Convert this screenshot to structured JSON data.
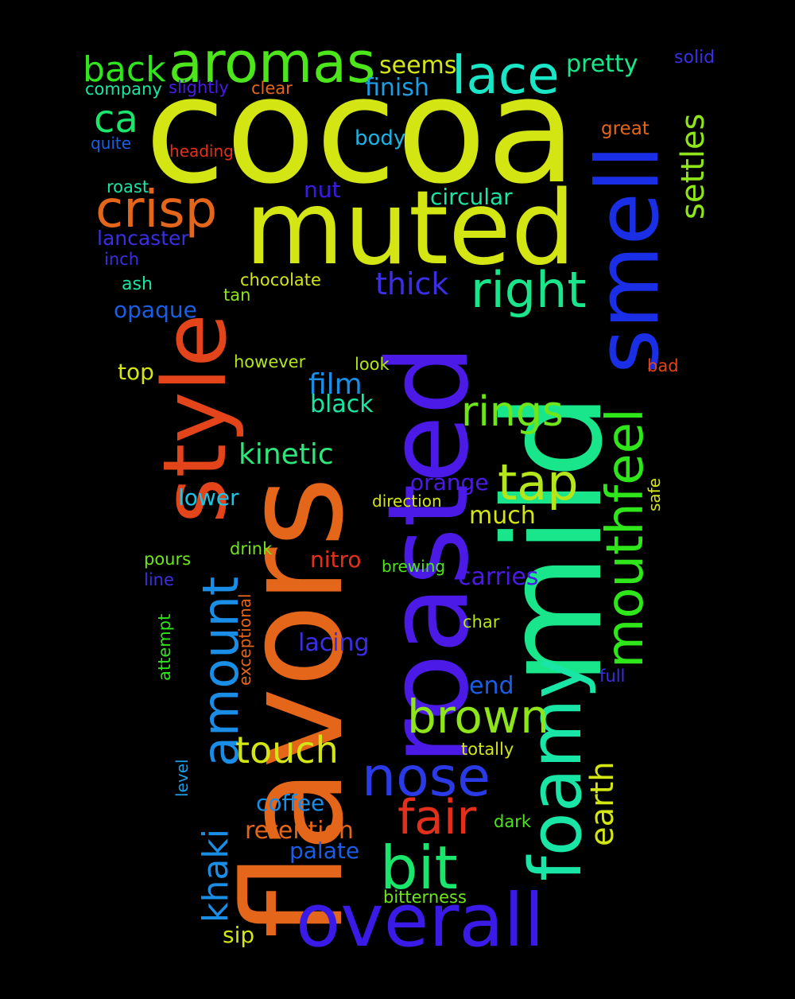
{
  "words": [
    {
      "text": "cocoa",
      "color": "#d4e514"
    },
    {
      "text": "flavors",
      "color": "#e4661a"
    },
    {
      "text": "mild",
      "color": "#19e68a"
    },
    {
      "text": "roasted",
      "color": "#4b1ae6"
    },
    {
      "text": "muted",
      "color": "#d4e514"
    },
    {
      "text": "style",
      "color": "#e4441a"
    },
    {
      "text": "smell",
      "color": "#1a2ee6"
    },
    {
      "text": "overall",
      "color": "#3a1ae6"
    },
    {
      "text": "foamy",
      "color": "#19e6a6"
    },
    {
      "text": "mouthfeel",
      "color": "#2ee61a"
    },
    {
      "text": "aromas",
      "color": "#4ce61a"
    },
    {
      "text": "amount",
      "color": "#1a8ee6"
    },
    {
      "text": "nose",
      "color": "#2a3ae6"
    },
    {
      "text": "bit",
      "color": "#19e66a"
    },
    {
      "text": "crisp",
      "color": "#e4661a"
    },
    {
      "text": "brown",
      "color": "#8ee61a"
    },
    {
      "text": "right",
      "color": "#19e68a"
    },
    {
      "text": "lace",
      "color": "#19e6c6"
    },
    {
      "text": "tap",
      "color": "#b4e61a"
    },
    {
      "text": "rings",
      "color": "#6ee61a"
    },
    {
      "text": "fair",
      "color": "#e4301a"
    },
    {
      "text": "touch",
      "color": "#d4e514"
    },
    {
      "text": "khaki",
      "color": "#1a8ee6"
    },
    {
      "text": "earth",
      "color": "#d4e514"
    },
    {
      "text": "settles",
      "color": "#8ee61a"
    },
    {
      "text": "back",
      "color": "#2ee61a"
    },
    {
      "text": "ca",
      "color": "#19e66a"
    },
    {
      "text": "kinetic",
      "color": "#2ee67a"
    },
    {
      "text": "thick",
      "color": "#3a2ee6"
    },
    {
      "text": "film",
      "color": "#1a8ee6"
    },
    {
      "text": "pretty",
      "color": "#19e68a"
    },
    {
      "text": "seems",
      "color": "#d4e514"
    },
    {
      "text": "finish",
      "color": "#1a9ee6"
    },
    {
      "text": "black",
      "color": "#19e6a6"
    },
    {
      "text": "retention",
      "color": "#e4661a"
    },
    {
      "text": "circular",
      "color": "#19e6a6"
    },
    {
      "text": "orange",
      "color": "#4b1ae6"
    },
    {
      "text": "opaque",
      "color": "#1a5ee6"
    },
    {
      "text": "body",
      "color": "#1ab4e6"
    },
    {
      "text": "lower",
      "color": "#19c6e6"
    },
    {
      "text": "much",
      "color": "#d4e514"
    },
    {
      "text": "carries",
      "color": "#4b1ae6"
    },
    {
      "text": "lacing",
      "color": "#3a2ee6"
    },
    {
      "text": "end",
      "color": "#1a5ee6"
    },
    {
      "text": "coffee",
      "color": "#1a8ee6"
    },
    {
      "text": "palate",
      "color": "#1a5ee6"
    },
    {
      "text": "nitro",
      "color": "#e4301a"
    },
    {
      "text": "lancaster",
      "color": "#3a2ee6"
    },
    {
      "text": "nut",
      "color": "#3a1ae6"
    },
    {
      "text": "top",
      "color": "#d4e514"
    },
    {
      "text": "sip",
      "color": "#d4e514"
    },
    {
      "text": "company",
      "color": "#19e6a6"
    },
    {
      "text": "slightly",
      "color": "#4b1ae6"
    },
    {
      "text": "clear",
      "color": "#e4661a"
    },
    {
      "text": "solid",
      "color": "#3a2ee6"
    },
    {
      "text": "great",
      "color": "#e4661a"
    },
    {
      "text": "quite",
      "color": "#1a5ee6"
    },
    {
      "text": "heading",
      "color": "#e4301a"
    },
    {
      "text": "roast",
      "color": "#19e6a6"
    },
    {
      "text": "inch",
      "color": "#3a2ee6"
    },
    {
      "text": "ash",
      "color": "#19e6a6"
    },
    {
      "text": "chocolate",
      "color": "#d4e514"
    },
    {
      "text": "tan",
      "color": "#8ee61a"
    },
    {
      "text": "however",
      "color": "#b4e61a"
    },
    {
      "text": "look",
      "color": "#b4e61a"
    },
    {
      "text": "bad",
      "color": "#e4441a"
    },
    {
      "text": "direction",
      "color": "#d4e514"
    },
    {
      "text": "safe",
      "color": "#d4e514"
    },
    {
      "text": "pours",
      "color": "#6ee61a"
    },
    {
      "text": "drink",
      "color": "#6ee61a"
    },
    {
      "text": "line",
      "color": "#3a2ee6"
    },
    {
      "text": "brewing",
      "color": "#4ce61a"
    },
    {
      "text": "exceptional",
      "color": "#e4661a"
    },
    {
      "text": "attempt",
      "color": "#2ee61a"
    },
    {
      "text": "char",
      "color": "#b4e61a"
    },
    {
      "text": "full",
      "color": "#3a2ee6"
    },
    {
      "text": "totally",
      "color": "#d4e514"
    },
    {
      "text": "level",
      "color": "#1a9ee6"
    },
    {
      "text": "dark",
      "color": "#4ce61a"
    },
    {
      "text": "bitterness",
      "color": "#6ee61a"
    }
  ]
}
